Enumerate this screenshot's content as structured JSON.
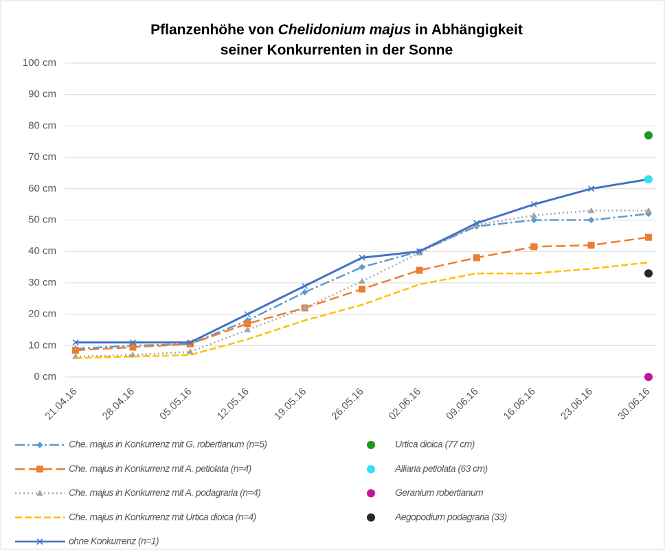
{
  "chart_data": {
    "type": "line",
    "title_parts": [
      "Pflanzenhöhe von ",
      "Chelidonium  majus",
      " in Abhängigkeit"
    ],
    "title_line2": "seiner Konkurrenten in der Sonne",
    "categories": [
      "21.04.16",
      "28.04.16",
      "05.05.16",
      "12.05.16",
      "19.05.16",
      "26.05.16",
      "02.06.16",
      "09.06.16",
      "16.06.16",
      "23.06.16",
      "30.06.16"
    ],
    "ylim": [
      0,
      100
    ],
    "yticks": [
      {
        "value": 0,
        "label": "0 cm"
      },
      {
        "value": 10,
        "label": "10 cm"
      },
      {
        "value": 20,
        "label": "20 cm"
      },
      {
        "value": 30,
        "label": "30 cm"
      },
      {
        "value": 40,
        "label": "40 cm"
      },
      {
        "value": 50,
        "label": "50 cm"
      },
      {
        "value": 60,
        "label": "60 cm"
      },
      {
        "value": 70,
        "label": "70 cm"
      },
      {
        "value": 80,
        "label": "80 cm"
      },
      {
        "value": 90,
        "label": "90 cm"
      },
      {
        "value": 100,
        "label": "100 cm"
      }
    ],
    "grid": true,
    "series": [
      {
        "name": "Che. majus in Konkurrenz mit G. robertianum (n=5)",
        "color": "#5b9bd5",
        "dash": "14 4 3 4",
        "marker": "diamond",
        "values": [
          9,
          10,
          10.5,
          18,
          27,
          35,
          40,
          48,
          50,
          50,
          52
        ]
      },
      {
        "name": "Che. majus in Konkurrenz mit A. petiolata (n=4)",
        "color": "#ed7d31",
        "dash": "14 6",
        "marker": "square",
        "values": [
          8.5,
          9.5,
          10.5,
          17,
          22,
          28,
          34,
          38,
          41.5,
          42,
          44.5
        ]
      },
      {
        "name": "Che. majus in Konkurrenz mit A. podagraria (n=4)",
        "color": "#a5a5a5",
        "dash": "2 4",
        "marker": "triangle",
        "values": [
          6.5,
          7,
          8,
          15,
          22,
          30.5,
          39.5,
          48.5,
          51.5,
          53,
          53
        ]
      },
      {
        "name": "Che. majus in Konkurrenz mit Urtica dioica (n=4)",
        "color": "#ffc000",
        "dash": "10 4",
        "marker": "none",
        "values": [
          6,
          6.5,
          7,
          12,
          18,
          23,
          29.5,
          33,
          33,
          34.5,
          36.5
        ]
      },
      {
        "name": "ohne Konkurrenz (n=1)",
        "color": "#4472c4",
        "dash": "none",
        "marker": "cross",
        "values": [
          11,
          11,
          11,
          20,
          29,
          38,
          40,
          49,
          55,
          60,
          63
        ]
      }
    ],
    "points": [
      {
        "name": "Urtica dioica (77 cm)",
        "color": "#1a9a1a",
        "x": "30.06.16",
        "value": 77
      },
      {
        "name": "Alliaria petiolata (63 cm)",
        "color": "#33e0f0",
        "x": "30.06.16",
        "value": 63
      },
      {
        "name": "Geranium robertianum",
        "color": "#c0169f",
        "x": "30.06.16",
        "value": 0
      },
      {
        "name": "Aegopodium podagraria (33)",
        "color": "#262626",
        "x": "30.06.16",
        "value": 33
      }
    ]
  }
}
